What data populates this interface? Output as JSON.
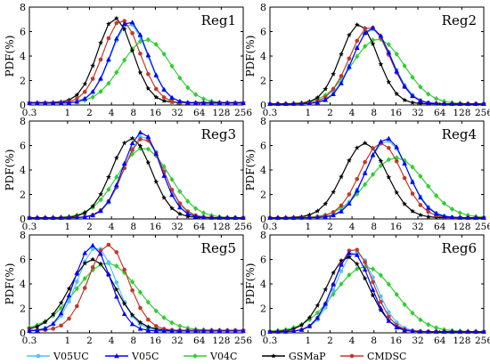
{
  "chart_data": {
    "type": "line",
    "shared": {
      "x_ticks": [
        "0.3",
        "1",
        "2",
        "4",
        "8",
        "16",
        "32",
        "64",
        "128",
        "256"
      ],
      "x_scale": "log2",
      "ylabel": "PDF(%)",
      "ylim": [
        0,
        8
      ],
      "y_ticks": [
        "0",
        "2",
        "4",
        "6",
        "8"
      ],
      "legend_position": "bottom",
      "grid": false
    },
    "colors": {
      "V05UC": "#4FC3F7",
      "V05C": "#0000FF",
      "V04C": "#33CC33",
      "GSMaP": "#000000",
      "CMDSC": "#C0392B"
    },
    "legend": [
      {
        "name": "V05UC",
        "marker": "circle"
      },
      {
        "name": "V05C",
        "marker": "triangle"
      },
      {
        "name": "V04C",
        "marker": "diamond"
      },
      {
        "name": "GSMaP",
        "marker": "star"
      },
      {
        "name": "CMDSC",
        "marker": "circle"
      }
    ],
    "panels": [
      {
        "title": "Reg1",
        "params": {
          "V05UC": [
            7.0,
            0.58,
            6.5,
            0.15
          ],
          "V05C": [
            7.0,
            0.58,
            6.7,
            0.15
          ],
          "V04C": [
            12.0,
            0.78,
            5.2,
            0.15
          ],
          "GSMaP": [
            4.5,
            0.55,
            6.9,
            0.2
          ],
          "CMDSC": [
            5.5,
            0.58,
            6.8,
            0.15
          ]
        }
      },
      {
        "title": "Reg2",
        "params": {
          "V05UC": [
            7.5,
            0.62,
            6.1,
            0.1
          ],
          "V05C": [
            7.5,
            0.6,
            6.2,
            0.1
          ],
          "V04C": [
            9.0,
            0.82,
            5.3,
            0.1
          ],
          "GSMaP": [
            5.0,
            0.58,
            6.5,
            0.1
          ],
          "CMDSC": [
            7.0,
            0.63,
            6.3,
            0.1
          ]
        }
      },
      {
        "title": "Reg3",
        "params": {
          "V05UC": [
            11.0,
            0.6,
            6.7,
            0.1
          ],
          "V05C": [
            10.5,
            0.58,
            7.0,
            0.1
          ],
          "V04C": [
            11.0,
            0.82,
            5.7,
            0.1
          ],
          "GSMaP": [
            7.5,
            0.62,
            6.5,
            0.1
          ],
          "CMDSC": [
            11.0,
            0.62,
            6.5,
            0.1
          ]
        }
      },
      {
        "title": "Reg4",
        "params": {
          "V05UC": [
            12.0,
            0.66,
            6.3,
            0.1
          ],
          "V05C": [
            12.0,
            0.64,
            6.5,
            0.1
          ],
          "V04C": [
            16.0,
            0.9,
            4.9,
            0.1
          ],
          "GSMaP": [
            6.0,
            0.68,
            6.1,
            0.1
          ],
          "CMDSC": [
            10.0,
            0.66,
            6.1,
            0.1
          ]
        }
      },
      {
        "title": "Reg5",
        "params": {
          "V05UC": [
            2.5,
            0.6,
            6.8,
            0.2
          ],
          "V05C": [
            2.2,
            0.56,
            7.0,
            0.15
          ],
          "V04C": [
            3.5,
            0.98,
            5.5,
            0.2
          ],
          "GSMaP": [
            2.2,
            0.72,
            5.8,
            0.2
          ],
          "CMDSC": [
            3.6,
            0.62,
            7.0,
            0.2
          ]
        }
      },
      {
        "title": "Reg6",
        "params": {
          "V05UC": [
            4.5,
            0.62,
            6.5,
            0.1
          ],
          "V05C": [
            4.0,
            0.58,
            6.5,
            0.1
          ],
          "V04C": [
            6.0,
            0.95,
            5.3,
            0.1
          ],
          "GSMaP": [
            3.5,
            0.66,
            6.1,
            0.1
          ],
          "CMDSC": [
            4.2,
            0.6,
            6.8,
            0.1
          ]
        }
      }
    ]
  }
}
